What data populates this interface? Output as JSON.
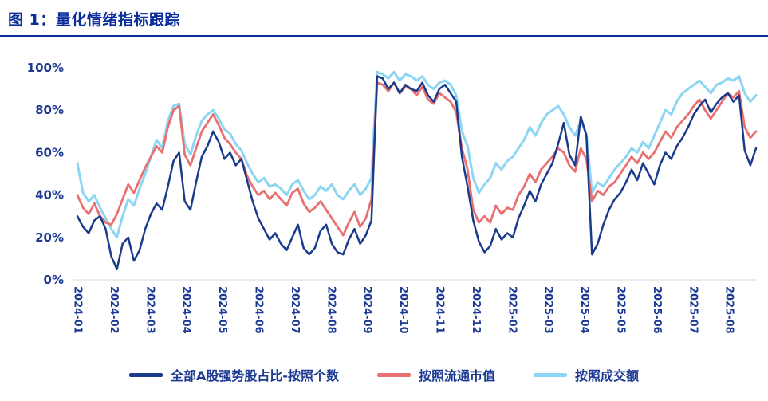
{
  "title": "图 1：量化情绪指标跟踪",
  "colors": {
    "title": "#0c2e9c",
    "underline": "#0c2e9c",
    "axis_text": "#1c3a94",
    "axis_line": "#d9d9d9",
    "background": "#ffffff"
  },
  "chart_data": {
    "type": "line",
    "title": "量化情绪指标跟踪",
    "ylim": [
      0,
      100
    ],
    "y_unit": "%",
    "y_tick_labels": [
      "0%",
      "20%",
      "40%",
      "60%",
      "80%",
      "100%"
    ],
    "y_tick_values": [
      0,
      20,
      40,
      60,
      80,
      100
    ],
    "x_tick_labels": [
      "2024-01",
      "2024-02",
      "2024-03",
      "2024-04",
      "2024-05",
      "2024-06",
      "2024-07",
      "2024-08",
      "2024-09",
      "2024-10",
      "2024-11",
      "2024-12",
      "2025-02",
      "2025-03",
      "2025-04",
      "2025-05",
      "2025-06",
      "2025-07",
      "2025-08"
    ],
    "x_range": [
      "2024-01",
      "2025-08"
    ],
    "grid": false,
    "legend_position": "bottom",
    "series": [
      {
        "name": "全部A股强势股占比-按照个数",
        "color": "#1a3a8c",
        "stroke_width": 2.5,
        "values": [
          30,
          25,
          22,
          28,
          30,
          24,
          11,
          5,
          17,
          20,
          9,
          14,
          24,
          31,
          36,
          33,
          44,
          56,
          60,
          37,
          33,
          46,
          58,
          63,
          70,
          65,
          57,
          60,
          54,
          57,
          47,
          37,
          29,
          24,
          19,
          22,
          17,
          14,
          20,
          26,
          15,
          12,
          15,
          23,
          26,
          17,
          13,
          12,
          19,
          24,
          17,
          21,
          28,
          96,
          95,
          90,
          93,
          88,
          92,
          90,
          89,
          93,
          87,
          84,
          90,
          92,
          88,
          84,
          58,
          44,
          28,
          18,
          13,
          16,
          24,
          19,
          22,
          20,
          29,
          35,
          42,
          37,
          45,
          50,
          55,
          64,
          74,
          59,
          54,
          77,
          68,
          12,
          17,
          26,
          33,
          38,
          41,
          46,
          52,
          47,
          55,
          50,
          45,
          54,
          60,
          57,
          63,
          67,
          72,
          78,
          82,
          85,
          79,
          83,
          86,
          88,
          84,
          87,
          61,
          54,
          62
        ]
      },
      {
        "name": "按照流通市值",
        "color": "#e97070",
        "stroke_width": 2.8,
        "values": [
          40,
          34,
          31,
          36,
          30,
          27,
          26,
          31,
          38,
          45,
          41,
          47,
          53,
          58,
          63,
          60,
          72,
          80,
          82,
          59,
          54,
          62,
          70,
          74,
          78,
          73,
          67,
          64,
          60,
          57,
          49,
          44,
          40,
          42,
          38,
          41,
          38,
          35,
          41,
          43,
          36,
          32,
          34,
          37,
          33,
          29,
          25,
          21,
          27,
          32,
          25,
          29,
          38,
          93,
          92,
          89,
          93,
          88,
          91,
          90,
          87,
          91,
          85,
          83,
          88,
          86,
          84,
          79,
          62,
          52,
          33,
          27,
          30,
          27,
          35,
          31,
          34,
          33,
          40,
          44,
          50,
          46,
          52,
          55,
          58,
          62,
          60,
          54,
          51,
          62,
          57,
          37,
          42,
          40,
          44,
          46,
          50,
          54,
          58,
          55,
          60,
          57,
          60,
          65,
          70,
          67,
          72,
          75,
          78,
          82,
          85,
          80,
          76,
          80,
          84,
          88,
          86,
          89,
          72,
          67,
          70
        ]
      },
      {
        "name": "按照成交额",
        "color": "#8cd6f4",
        "stroke_width": 3.0,
        "values": [
          55,
          41,
          37,
          40,
          34,
          29,
          24,
          20,
          30,
          38,
          35,
          43,
          50,
          58,
          66,
          62,
          75,
          82,
          83,
          64,
          59,
          68,
          75,
          78,
          80,
          76,
          71,
          69,
          64,
          61,
          55,
          50,
          46,
          48,
          44,
          45,
          43,
          40,
          45,
          47,
          42,
          38,
          40,
          44,
          42,
          45,
          40,
          38,
          42,
          45,
          40,
          43,
          48,
          98,
          97,
          95,
          98,
          94,
          97,
          96,
          94,
          96,
          92,
          90,
          93,
          94,
          92,
          87,
          70,
          63,
          48,
          41,
          45,
          48,
          55,
          52,
          56,
          58,
          62,
          66,
          72,
          68,
          74,
          78,
          80,
          82,
          78,
          72,
          68,
          75,
          69,
          41,
          46,
          44,
          48,
          52,
          55,
          58,
          62,
          60,
          65,
          62,
          68,
          74,
          80,
          78,
          84,
          88,
          90,
          92,
          94,
          91,
          88,
          92,
          93,
          95,
          94,
          96,
          88,
          84,
          87
        ]
      }
    ]
  },
  "legend": {
    "items": [
      {
        "label": "全部A股强势股占比-按照个数"
      },
      {
        "label": "按照流通市值"
      },
      {
        "label": "按照成交额"
      }
    ]
  }
}
